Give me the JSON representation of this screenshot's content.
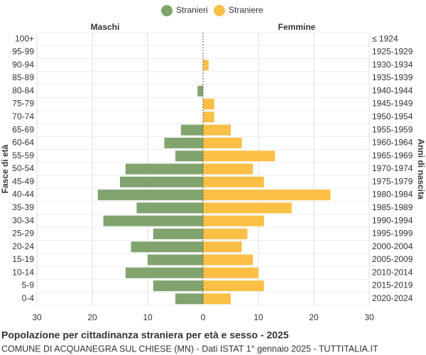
{
  "chart_data": {
    "type": "pyramid",
    "title": "Popolazione per cittadinanza straniera per età e sesso - 2025",
    "subtitle": "COMUNE DI ACQUANEGRA SUL CHIESE (MN) - Dati ISTAT 1° gennaio 2025 - TUTTITALIA.IT",
    "left_label": "Maschi",
    "right_label": "Femmine",
    "y_axis_label": "Fasce di età",
    "y2_axis_label": "Anni di nascita",
    "categories": [
      "100+",
      "95-99",
      "90-94",
      "85-89",
      "80-84",
      "75-79",
      "70-74",
      "65-69",
      "60-64",
      "55-59",
      "50-54",
      "45-49",
      "40-44",
      "35-39",
      "30-34",
      "25-29",
      "20-24",
      "15-19",
      "10-14",
      "5-9",
      "0-4"
    ],
    "birth_years": [
      "≤ 1924",
      "1925-1929",
      "1930-1934",
      "1935-1939",
      "1940-1944",
      "1945-1949",
      "1950-1954",
      "1955-1959",
      "1960-1964",
      "1965-1969",
      "1970-1974",
      "1975-1979",
      "1980-1984",
      "1985-1989",
      "1990-1994",
      "1995-1999",
      "2000-2004",
      "2005-2009",
      "2010-2014",
      "2015-2019",
      "2020-2024"
    ],
    "series": [
      {
        "name": "Stranieri",
        "color": "#81a46f",
        "values": [
          0,
          0,
          0,
          0,
          1,
          0,
          0,
          4,
          7,
          5,
          14,
          15,
          19,
          12,
          18,
          9,
          13,
          10,
          14,
          9,
          5
        ]
      },
      {
        "name": "Straniere",
        "color": "#fbbf45",
        "values": [
          0,
          0,
          1,
          0,
          0,
          2,
          2,
          5,
          7,
          13,
          9,
          11,
          23,
          16,
          11,
          8,
          7,
          9,
          10,
          11,
          5
        ]
      }
    ],
    "xlim": [
      0,
      30
    ],
    "xticks": [
      0,
      10,
      20,
      30
    ],
    "grid": true
  }
}
